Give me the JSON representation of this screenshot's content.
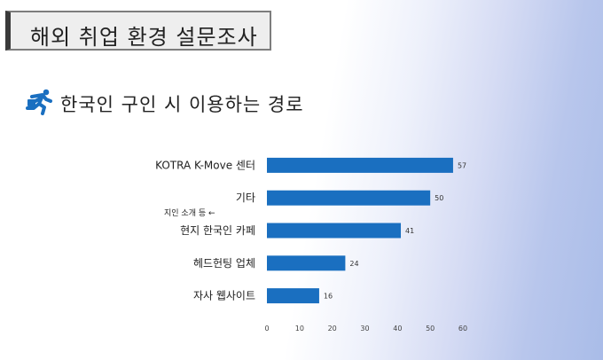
{
  "header": {
    "title": "해외 취업 환경 설문조사"
  },
  "section": {
    "subtitle": "한국인 구인 시 이용하는 경로",
    "icon": "running-person-icon"
  },
  "annotation": "지인 소개 등 ←",
  "colors": {
    "bar": "#1a6fc0",
    "title_bar": "#3a3a3a",
    "icon": "#1a6fc0"
  },
  "chart_data": {
    "type": "bar",
    "orientation": "horizontal",
    "categories": [
      "KOTRA K-Move 센터",
      "기타",
      "현지 한국인 카페",
      "헤드헌팅 업체",
      "자사 웹사이트"
    ],
    "values": [
      57,
      50,
      41,
      24,
      16
    ],
    "xlim": [
      0,
      60
    ],
    "xticks": [
      0,
      10,
      20,
      30,
      40,
      50,
      60
    ],
    "data_labels": true,
    "grid": false
  }
}
